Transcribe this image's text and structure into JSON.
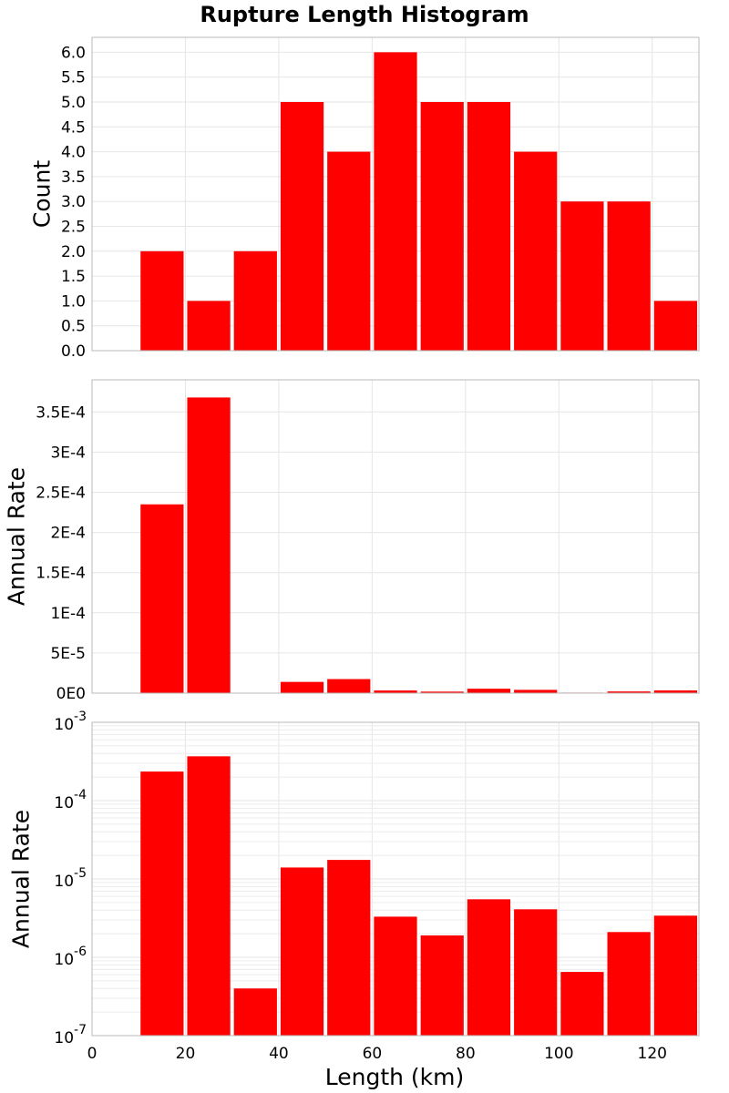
{
  "chart_data": [
    {
      "type": "bar",
      "title": "Rupture Length Histogram",
      "xlabel": "",
      "ylabel": "Count",
      "xlim": [
        0,
        130
      ],
      "ylim": [
        0,
        6.3
      ],
      "bin_width": 10,
      "x": [
        15,
        25,
        35,
        45,
        55,
        65,
        75,
        85,
        95,
        105,
        115,
        125
      ],
      "values": [
        2,
        1,
        2,
        5,
        4,
        6,
        5,
        5,
        4,
        3,
        3,
        1
      ],
      "ytick_values": [
        0,
        0.5,
        1,
        1.5,
        2,
        2.5,
        3,
        3.5,
        4,
        4.5,
        5,
        5.5,
        6
      ],
      "ytick_labels": [
        "0.0",
        "0.5",
        "1.0",
        "1.5",
        "2.0",
        "2.5",
        "3.0",
        "3.5",
        "4.0",
        "4.5",
        "5.0",
        "5.5",
        "6.0"
      ],
      "color": "#ff0000"
    },
    {
      "type": "bar",
      "title": "",
      "xlabel": "",
      "ylabel": "Annual Rate",
      "xlim": [
        0,
        130
      ],
      "ylim": [
        0,
        0.00039
      ],
      "bin_width": 10,
      "x": [
        15,
        25,
        35,
        45,
        55,
        65,
        75,
        85,
        95,
        105,
        115,
        125
      ],
      "values": [
        0.000235,
        0.000368,
        4e-07,
        1.4e-05,
        1.75e-05,
        3.3e-06,
        1.9e-06,
        5.5e-06,
        4.1e-06,
        6.5e-07,
        2.1e-06,
        3.4e-06
      ],
      "ytick_values": [
        0,
        5e-05,
        0.0001,
        0.00015,
        0.0002,
        0.00025,
        0.0003,
        0.00035
      ],
      "ytick_labels": [
        "0E0",
        "5E-5",
        "1E-4",
        "1.5E-4",
        "2E-4",
        "2.5E-4",
        "3E-4",
        "3.5E-4"
      ],
      "color": "#ff0000"
    },
    {
      "type": "bar",
      "title": "",
      "xlabel": "Length (km)",
      "ylabel": "Annual Rate",
      "yscale": "log",
      "xlim": [
        0,
        130
      ],
      "ylim": [
        1e-07,
        0.001
      ],
      "bin_width": 10,
      "x": [
        15,
        25,
        35,
        45,
        55,
        65,
        75,
        85,
        95,
        105,
        115,
        125
      ],
      "values": [
        0.000235,
        0.000368,
        4e-07,
        1.4e-05,
        1.75e-05,
        3.3e-06,
        1.9e-06,
        5.5e-06,
        4.1e-06,
        6.5e-07,
        2.1e-06,
        3.4e-06
      ],
      "ytick_exponents": [
        -7,
        -6,
        -5,
        -4,
        -3
      ],
      "ytick_base": "10",
      "xtick_values": [
        0,
        20,
        40,
        60,
        80,
        100,
        120
      ],
      "xtick_labels": [
        "0",
        "20",
        "40",
        "60",
        "80",
        "100",
        "120"
      ],
      "color": "#ff0000"
    }
  ]
}
